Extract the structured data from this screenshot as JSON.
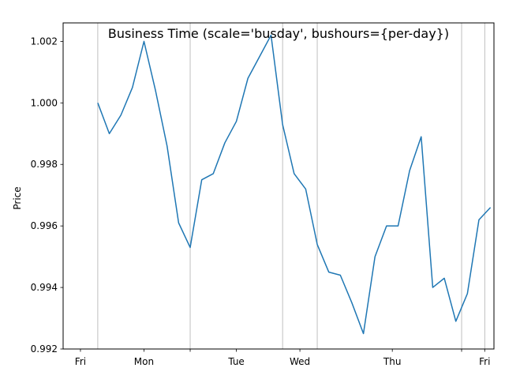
{
  "chart_data": {
    "type": "line",
    "title": "Business Time (scale='busday', bushours={per-day})",
    "xlabel": "",
    "ylabel": "Price",
    "ylim": [
      0.992,
      1.0026
    ],
    "y_ticks": [
      0.992,
      0.994,
      0.996,
      0.998,
      1.0,
      1.002
    ],
    "y_tick_labels": [
      "0.992",
      "0.994",
      "0.996",
      "0.998",
      "1.000",
      "1.002"
    ],
    "x_range": [
      -1.5,
      35.8
    ],
    "x_ticks": [
      {
        "pos": 0,
        "label": "Fri"
      },
      {
        "pos": 5.5,
        "label": "Mon"
      },
      {
        "pos": 9.5,
        "label": ""
      },
      {
        "pos": 13.5,
        "label": "Tue"
      },
      {
        "pos": 19,
        "label": "Wed"
      },
      {
        "pos": 27,
        "label": "Thu"
      },
      {
        "pos": 33,
        "label": ""
      },
      {
        "pos": 35,
        "label": "Fri"
      }
    ],
    "gridlines_x": [
      1.5,
      9.5,
      17.5,
      20.5,
      33,
      35
    ],
    "grid": "vertical lines at day boundaries",
    "line_color": "#1f77b4",
    "grid_color": "#b0b0b0",
    "series": [
      {
        "name": "",
        "x": [
          1.5,
          2.5,
          3.5,
          4.5,
          5.5,
          6.5,
          7.5,
          8.5,
          9.5,
          10.5,
          11.5,
          12.5,
          13.5,
          14.5,
          15.5,
          16.5,
          17.5,
          18.5,
          19.5,
          20.5,
          21.5,
          22.5,
          23.5,
          24.5,
          25.5,
          26.5,
          27.5,
          28.5,
          29.5,
          30.5,
          31.5,
          32.5,
          33.5,
          34.5,
          35.5
        ],
        "values": [
          1.0,
          0.999,
          0.9996,
          1.0005,
          1.002,
          1.0004,
          0.9986,
          0.9961,
          0.9953,
          0.9975,
          0.9977,
          0.9987,
          0.9994,
          1.0008,
          1.0015,
          1.0022,
          0.9993,
          0.9977,
          0.9972,
          0.9954,
          0.9945,
          0.9944,
          0.9935,
          0.9925,
          0.995,
          0.996,
          0.996,
          0.9978,
          0.9989,
          0.994,
          0.9943,
          0.9929,
          0.9938,
          0.9962,
          0.9966
        ]
      }
    ]
  }
}
